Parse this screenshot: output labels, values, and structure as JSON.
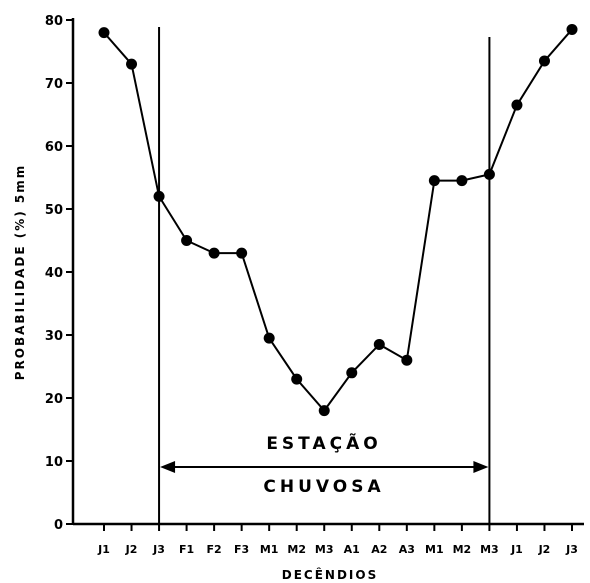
{
  "chart_data": {
    "type": "line",
    "xlabel": "DECÊNDIOS",
    "ylabel": "PROBABILIDADE (%) 5mm",
    "ylim": [
      0,
      80
    ],
    "yticks": [
      "0",
      "10",
      "20",
      "30",
      "40",
      "50",
      "60",
      "70",
      "80"
    ],
    "categories": [
      "J1",
      "J2",
      "J3",
      "F1",
      "F2",
      "F3",
      "M1",
      "M2",
      "M3",
      "A1",
      "A2",
      "A3",
      "M1",
      "M2",
      "M3",
      "J1",
      "J2",
      "J3"
    ],
    "series": [
      {
        "values": [
          78,
          73,
          52,
          45,
          43,
          43,
          29.5,
          23,
          18,
          24,
          28.5,
          26,
          54.5,
          54.5,
          55.5,
          66.5,
          73.5,
          78.5
        ]
      }
    ],
    "grid": false,
    "annotation": {
      "line1": "ESTAÇÃO",
      "line2": "CHUVOSA",
      "start_category": "J3",
      "end_category": "M3"
    }
  }
}
